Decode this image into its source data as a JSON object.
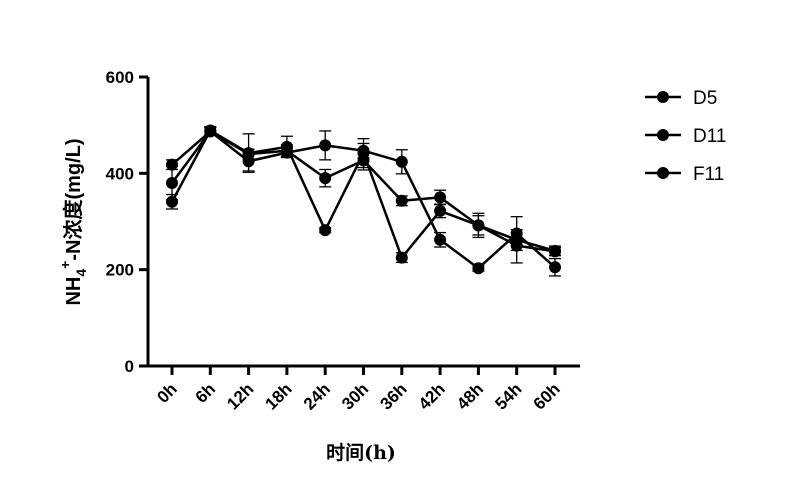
{
  "chart_data": {
    "type": "line",
    "title": "",
    "xlabel": "时间(h)",
    "ylabel": "NH4+-N浓度(mg/L)",
    "ylabel_parts": {
      "base": "NH",
      "sub": "4",
      "sup": "+",
      "rest": "-N浓度(mg/L)"
    },
    "ylim": [
      0,
      600
    ],
    "yticks": [
      0,
      200,
      400,
      600
    ],
    "categories": [
      "0h",
      "6h",
      "12h",
      "18h",
      "24h",
      "30h",
      "36h",
      "42h",
      "48h",
      "54h",
      "60h"
    ],
    "legend_position": "top-right",
    "grid": false,
    "series": [
      {
        "name": "D5",
        "values": [
          341,
          489,
          442,
          455,
          282,
          442,
          225,
          322,
          292,
          262,
          239
        ],
        "errors": [
          15,
          8,
          40,
          22,
          5,
          30,
          10,
          14,
          25,
          48,
          10
        ]
      },
      {
        "name": "D11",
        "values": [
          418,
          487,
          425,
          443,
          458,
          447,
          424,
          262,
          203,
          275,
          205
        ],
        "errors": [
          10,
          8,
          20,
          10,
          30,
          15,
          25,
          15,
          6,
          8,
          18
        ]
      },
      {
        "name": "F11",
        "values": [
          380,
          487,
          440,
          447,
          390,
          427,
          343,
          350,
          292,
          250,
          238
        ],
        "errors": [
          35,
          8,
          10,
          12,
          18,
          20,
          10,
          15,
          20,
          10,
          8
        ]
      }
    ]
  }
}
